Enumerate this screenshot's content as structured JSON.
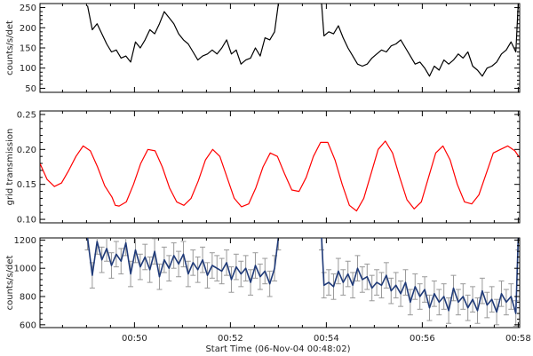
{
  "x_axis": {
    "label": "Start Time (06-Nov-04 00:48:02)",
    "tick_labels": [
      "00:50",
      "00:52",
      "00:54",
      "00:56",
      "00:58"
    ]
  },
  "chart_data": [
    {
      "type": "line",
      "ylabel": "counts/s/det",
      "ylim": [
        40,
        260
      ],
      "yticks": [
        50,
        100,
        150,
        200,
        250
      ],
      "xlim_min": [
        48.03,
        58.03
      ],
      "gap_min": [
        53.0,
        53.9
      ],
      "line_color": "#000000",
      "series": [
        {
          "x": [
            49.02,
            49.12,
            49.22,
            49.32,
            49.42,
            49.52,
            49.62,
            49.72,
            49.82,
            49.92,
            50.02,
            50.12,
            50.22,
            50.32,
            50.42,
            50.52,
            50.62,
            50.72,
            50.82,
            50.92,
            51.02,
            51.12,
            51.22,
            51.32,
            51.42,
            51.52,
            51.62,
            51.72,
            51.82,
            51.92,
            52.02,
            52.12,
            52.22,
            52.32,
            52.42,
            52.52,
            52.62,
            52.72,
            52.82,
            52.92,
            53.0
          ],
          "y": [
            255,
            195,
            210,
            185,
            160,
            140,
            145,
            125,
            130,
            115,
            165,
            150,
            170,
            195,
            185,
            210,
            240,
            225,
            210,
            185,
            170,
            160,
            140,
            120,
            130,
            135,
            145,
            135,
            150,
            170,
            135,
            145,
            110,
            120,
            125,
            150,
            130,
            175,
            170,
            190,
            260
          ]
        },
        {
          "x": [
            53.9,
            53.95,
            54.05,
            54.15,
            54.25,
            54.35,
            54.45,
            54.55,
            54.65,
            54.75,
            54.85,
            54.95,
            55.05,
            55.15,
            55.25,
            55.35,
            55.45,
            55.55,
            55.65,
            55.75,
            55.85,
            55.95,
            56.05,
            56.15,
            56.25,
            56.35,
            56.45,
            56.55,
            56.65,
            56.75,
            56.85,
            56.95,
            57.05,
            57.15,
            57.25,
            57.35,
            57.45,
            57.55,
            57.65,
            57.75,
            57.85,
            57.95,
            58.0
          ],
          "y": [
            260,
            180,
            190,
            185,
            205,
            175,
            150,
            130,
            110,
            105,
            110,
            125,
            135,
            145,
            140,
            155,
            160,
            170,
            150,
            130,
            110,
            115,
            100,
            80,
            105,
            95,
            120,
            110,
            120,
            135,
            125,
            140,
            105,
            95,
            80,
            100,
            105,
            115,
            135,
            145,
            165,
            140,
            260
          ]
        }
      ]
    },
    {
      "type": "line",
      "ylabel": "grid transmission",
      "ylim": [
        0.095,
        0.255
      ],
      "yticks": [
        0.1,
        0.15,
        0.2,
        0.25
      ],
      "ytick_labels": [
        "0.10",
        "0.15",
        "0.20",
        "0.25"
      ],
      "xlim_min": [
        48.03,
        58.03
      ],
      "line_color": "#ff0000",
      "series": [
        {
          "x": [
            48.03,
            48.18,
            48.33,
            48.48,
            48.63,
            48.78,
            48.93,
            49.08,
            49.23,
            49.38,
            49.53,
            49.6,
            49.68,
            49.83,
            49.98,
            50.13,
            50.28,
            50.43,
            50.58,
            50.73,
            50.88,
            51.03,
            51.18,
            51.33,
            51.48,
            51.63,
            51.78,
            51.93,
            52.08,
            52.23,
            52.38,
            52.53,
            52.68,
            52.83,
            52.98,
            53.13,
            53.28,
            53.43,
            53.58,
            53.73,
            53.88,
            54.03,
            54.18,
            54.33,
            54.48,
            54.63,
            54.78,
            54.93,
            55.08,
            55.23,
            55.38,
            55.53,
            55.68,
            55.83,
            55.98,
            56.13,
            56.28,
            56.43,
            56.58,
            56.73,
            56.88,
            57.03,
            57.18,
            57.33,
            57.48,
            57.63,
            57.78,
            57.93,
            58.03
          ],
          "y": [
            0.18,
            0.157,
            0.147,
            0.152,
            0.17,
            0.19,
            0.205,
            0.198,
            0.175,
            0.148,
            0.132,
            0.12,
            0.119,
            0.125,
            0.15,
            0.18,
            0.2,
            0.198,
            0.175,
            0.145,
            0.125,
            0.12,
            0.13,
            0.155,
            0.185,
            0.2,
            0.19,
            0.16,
            0.13,
            0.118,
            0.122,
            0.145,
            0.175,
            0.195,
            0.19,
            0.165,
            0.142,
            0.14,
            0.16,
            0.19,
            0.21,
            0.21,
            0.185,
            0.15,
            0.12,
            0.112,
            0.13,
            0.165,
            0.2,
            0.212,
            0.195,
            0.16,
            0.128,
            0.115,
            0.125,
            0.16,
            0.195,
            0.205,
            0.185,
            0.15,
            0.125,
            0.122,
            0.135,
            0.165,
            0.195,
            0.2,
            0.205,
            0.198,
            0.188
          ]
        }
      ]
    },
    {
      "type": "line",
      "ylabel": "counts/s/det",
      "ylim": [
        580,
        1215
      ],
      "yticks": [
        600,
        800,
        1000,
        1200
      ],
      "xlim_min": [
        48.03,
        58.03
      ],
      "gap_min": [
        53.0,
        53.9
      ],
      "line_color": "#1f3a78",
      "error_bar_color": "#999999",
      "error_bar": 90,
      "series": [
        {
          "x": [
            49.02,
            49.12,
            49.22,
            49.32,
            49.42,
            49.52,
            49.62,
            49.72,
            49.82,
            49.92,
            50.02,
            50.12,
            50.22,
            50.32,
            50.42,
            50.52,
            50.62,
            50.72,
            50.82,
            50.92,
            51.02,
            51.12,
            51.22,
            51.32,
            51.42,
            51.52,
            51.62,
            51.72,
            51.82,
            51.92,
            52.02,
            52.12,
            52.22,
            52.32,
            52.42,
            52.52,
            52.62,
            52.72,
            52.82,
            52.92,
            53.0
          ],
          "y": [
            1220,
            950,
            1190,
            1060,
            1140,
            1020,
            1100,
            1050,
            1180,
            960,
            1130,
            1010,
            1080,
            990,
            1120,
            940,
            1060,
            1000,
            1090,
            1030,
            1100,
            960,
            1040,
            990,
            1060,
            950,
            1020,
            1000,
            980,
            1040,
            920,
            1010,
            960,
            1000,
            900,
            1020,
            940,
            980,
            890,
            1000,
            1220
          ]
        },
        {
          "x": [
            53.9,
            53.95,
            54.05,
            54.15,
            54.25,
            54.35,
            54.45,
            54.55,
            54.65,
            54.75,
            54.85,
            54.95,
            55.05,
            55.15,
            55.25,
            55.35,
            55.45,
            55.55,
            55.65,
            55.75,
            55.85,
            55.95,
            56.05,
            56.15,
            56.25,
            56.35,
            56.45,
            56.55,
            56.65,
            56.75,
            56.85,
            56.95,
            57.05,
            57.15,
            57.25,
            57.35,
            57.45,
            57.55,
            57.65,
            57.75,
            57.85,
            57.95,
            58.0
          ],
          "y": [
            1220,
            880,
            900,
            870,
            980,
            900,
            960,
            880,
            1000,
            920,
            940,
            860,
            900,
            880,
            950,
            840,
            880,
            820,
            900,
            760,
            870,
            800,
            850,
            720,
            820,
            760,
            800,
            700,
            860,
            760,
            800,
            720,
            780,
            700,
            840,
            740,
            780,
            690,
            820,
            760,
            800,
            680,
            1220
          ]
        }
      ]
    }
  ]
}
